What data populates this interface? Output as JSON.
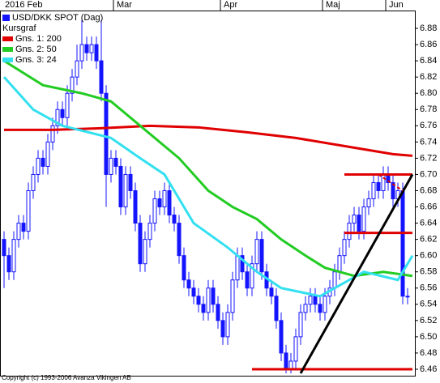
{
  "chart_data": {
    "type": "candlestick",
    "months": [
      "2016 Feb",
      "Mar",
      "Apr",
      "Maj",
      "Jun"
    ],
    "month_starts": [
      0,
      23,
      45,
      66,
      79
    ],
    "ylim": [
      6.453,
      6.901
    ],
    "yticks": [
      6.46,
      6.48,
      {
        "value": 6.5,
        "label": "6.50"
      },
      6.52,
      6.54,
      6.56,
      6.58,
      {
        "value": 6.6,
        "label": "6.60"
      },
      6.62,
      6.64,
      6.66,
      6.68,
      {
        "value": 6.7,
        "label": "6.70"
      },
      6.72,
      6.74,
      6.76,
      6.78,
      {
        "value": 6.8,
        "label": "6.80"
      },
      6.82,
      6.84,
      6.86,
      6.88
    ],
    "legend_heading": "Kursgraf",
    "candles": {
      "name": "USD/DKK SPOT (Dag)",
      "color": "#1414ff",
      "up_color": "#ffffff",
      "open": [
        6.62,
        6.6,
        6.58,
        6.62,
        6.64,
        6.63,
        6.68,
        6.7,
        6.72,
        6.71,
        6.74,
        6.76,
        6.78,
        6.77,
        6.8,
        6.82,
        6.84,
        6.86,
        6.85,
        6.86,
        6.84,
        6.8,
        6.7,
        6.72,
        6.71,
        6.66,
        6.7,
        6.68,
        6.64,
        6.59,
        6.62,
        6.64,
        6.67,
        6.66,
        6.68,
        6.65,
        6.64,
        6.6,
        6.57,
        6.56,
        6.55,
        6.54,
        6.53,
        6.56,
        6.54,
        6.52,
        6.5,
        6.53,
        6.57,
        6.6,
        6.58,
        6.56,
        6.59,
        6.62,
        6.58,
        6.56,
        6.55,
        6.52,
        6.48,
        6.46,
        6.47,
        6.5,
        6.53,
        6.54,
        6.55,
        6.54,
        6.53,
        6.55,
        6.56,
        6.58,
        6.6,
        6.62,
        6.64,
        6.65,
        6.63,
        6.66,
        6.67,
        6.69,
        6.68,
        6.7,
        6.69,
        6.67,
        6.68,
        6.55
      ],
      "high": [
        6.63,
        6.61,
        6.63,
        6.65,
        6.65,
        6.69,
        6.71,
        6.73,
        6.73,
        6.75,
        6.77,
        6.79,
        6.79,
        6.81,
        6.83,
        6.86,
        6.89,
        6.87,
        6.87,
        6.87,
        6.89,
        6.81,
        6.73,
        6.73,
        6.72,
        6.71,
        6.71,
        6.69,
        6.65,
        6.63,
        6.65,
        6.68,
        6.68,
        6.69,
        6.69,
        6.66,
        6.65,
        6.61,
        6.58,
        6.57,
        6.56,
        6.55,
        6.57,
        6.57,
        6.55,
        6.53,
        6.54,
        6.58,
        6.61,
        6.61,
        6.59,
        6.6,
        6.63,
        6.63,
        6.59,
        6.57,
        6.56,
        6.53,
        6.49,
        6.48,
        6.51,
        6.54,
        6.55,
        6.56,
        6.56,
        6.55,
        6.56,
        6.57,
        6.59,
        6.61,
        6.63,
        6.65,
        6.66,
        6.66,
        6.67,
        6.68,
        6.7,
        6.7,
        6.71,
        6.71,
        6.7,
        6.69,
        6.69,
        6.56
      ],
      "low": [
        6.56,
        6.57,
        6.57,
        6.61,
        6.62,
        6.62,
        6.67,
        6.69,
        6.7,
        6.7,
        6.73,
        6.75,
        6.76,
        6.76,
        6.79,
        6.81,
        6.83,
        6.84,
        6.84,
        6.83,
        6.79,
        6.66,
        6.69,
        6.7,
        6.65,
        6.65,
        6.67,
        6.63,
        6.58,
        6.58,
        6.61,
        6.63,
        6.65,
        6.65,
        6.64,
        6.63,
        6.59,
        6.56,
        6.55,
        6.54,
        6.53,
        6.52,
        6.52,
        6.53,
        6.51,
        6.49,
        6.49,
        6.52,
        6.56,
        6.57,
        6.55,
        6.55,
        6.58,
        6.57,
        6.55,
        6.54,
        6.51,
        6.47,
        6.455,
        6.455,
        6.46,
        6.49,
        6.52,
        6.53,
        6.53,
        6.52,
        6.52,
        6.54,
        6.55,
        6.57,
        6.59,
        6.61,
        6.63,
        6.62,
        6.62,
        6.65,
        6.66,
        6.67,
        6.67,
        6.68,
        6.66,
        6.66,
        6.54,
        6.54
      ],
      "close": [
        6.6,
        6.58,
        6.62,
        6.64,
        6.63,
        6.68,
        6.7,
        6.72,
        6.71,
        6.74,
        6.76,
        6.78,
        6.77,
        6.8,
        6.82,
        6.84,
        6.86,
        6.85,
        6.86,
        6.84,
        6.8,
        6.7,
        6.72,
        6.71,
        6.66,
        6.7,
        6.68,
        6.64,
        6.59,
        6.62,
        6.64,
        6.67,
        6.66,
        6.68,
        6.65,
        6.64,
        6.6,
        6.57,
        6.56,
        6.55,
        6.54,
        6.53,
        6.56,
        6.54,
        6.52,
        6.5,
        6.53,
        6.57,
        6.6,
        6.58,
        6.56,
        6.59,
        6.62,
        6.58,
        6.56,
        6.55,
        6.52,
        6.48,
        6.46,
        6.47,
        6.5,
        6.53,
        6.54,
        6.55,
        6.54,
        6.53,
        6.55,
        6.56,
        6.58,
        6.6,
        6.62,
        6.64,
        6.65,
        6.63,
        6.66,
        6.67,
        6.69,
        6.68,
        6.7,
        6.69,
        6.67,
        6.68,
        6.55,
        6.55
      ]
    },
    "series": [
      {
        "name": "Gns. 1: 200",
        "color": "#e00000",
        "x": [
          0,
          10,
          20,
          30,
          40,
          50,
          60,
          70,
          80,
          84
        ],
        "values": [
          6.755,
          6.755,
          6.757,
          6.76,
          6.758,
          6.752,
          6.745,
          6.735,
          6.725,
          6.723
        ]
      },
      {
        "name": "Gns. 2: 50",
        "color": "#22cc22",
        "x": [
          0,
          8,
          16,
          22,
          28,
          36,
          42,
          47,
          52,
          57,
          62,
          66,
          72,
          78,
          84
        ],
        "values": [
          6.84,
          6.81,
          6.8,
          6.79,
          6.76,
          6.72,
          6.68,
          6.66,
          6.645,
          6.62,
          6.6,
          6.585,
          6.575,
          6.58,
          6.575
        ]
      },
      {
        "name": "Gns. 3: 24",
        "color": "#33e0f0",
        "x": [
          0,
          6,
          12,
          22,
          28,
          33,
          39,
          46,
          52,
          57,
          65,
          68,
          74,
          81,
          84
        ],
        "values": [
          6.82,
          6.78,
          6.76,
          6.745,
          6.72,
          6.7,
          6.64,
          6.61,
          6.58,
          6.56,
          6.55,
          6.56,
          6.58,
          6.57,
          6.6
        ]
      }
    ],
    "annotation_lines": [
      {
        "color": "#e00000",
        "x": [
          70,
          84
        ],
        "values": [
          6.7,
          6.7
        ]
      },
      {
        "color": "#e00000",
        "x": [
          70,
          84
        ],
        "values": [
          6.628,
          6.628
        ]
      },
      {
        "color": "#e00000",
        "x": [
          51,
          84
        ],
        "values": [
          6.46,
          6.46
        ]
      },
      {
        "color": "#000000",
        "x": [
          61,
          84
        ],
        "values": [
          6.455,
          6.7
        ]
      },
      {
        "color": "#e00000",
        "x": [
          77,
          82
        ],
        "values": [
          6.7,
          6.68
        ],
        "dashed": true
      }
    ],
    "copyright": "Copyright (c) 1993-2006 Avanza Vikingen AB"
  }
}
